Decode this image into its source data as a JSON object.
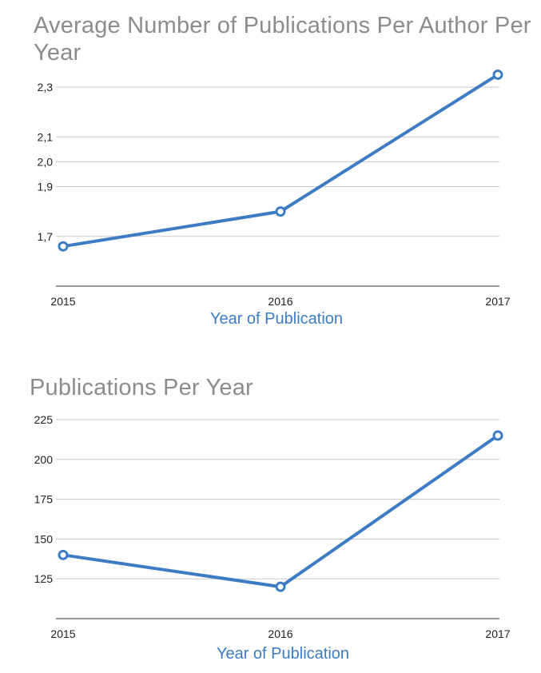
{
  "chart_data": [
    {
      "type": "line",
      "title": "Average Number of Publications Per Author Per Year",
      "xlabel": "Year of Publication",
      "ylabel": "",
      "categories": [
        "2015",
        "2016",
        "2017"
      ],
      "series": [
        {
          "values": [
            1.66,
            1.8,
            2.35
          ]
        }
      ],
      "yticks": [
        1.7,
        1.9,
        2.0,
        2.1,
        2.3
      ],
      "ytick_labels": [
        "1,7",
        "1,9",
        "2,0",
        "2,1",
        "2,3"
      ],
      "ylim": [
        1.5,
        2.3
      ],
      "grid": true,
      "line_color": "#3d7cc4"
    },
    {
      "type": "line",
      "title": "Publications Per Year",
      "xlabel": "Year of Publication",
      "ylabel": "",
      "categories": [
        "2015",
        "2016",
        "2017"
      ],
      "series": [
        {
          "values": [
            140,
            120,
            215
          ]
        }
      ],
      "yticks": [
        125,
        150,
        175,
        200,
        225
      ],
      "ytick_labels": [
        "125",
        "150",
        "175",
        "200",
        "225"
      ],
      "ylim": [
        100,
        225
      ],
      "grid": true,
      "line_color": "#3d7cc4"
    }
  ]
}
